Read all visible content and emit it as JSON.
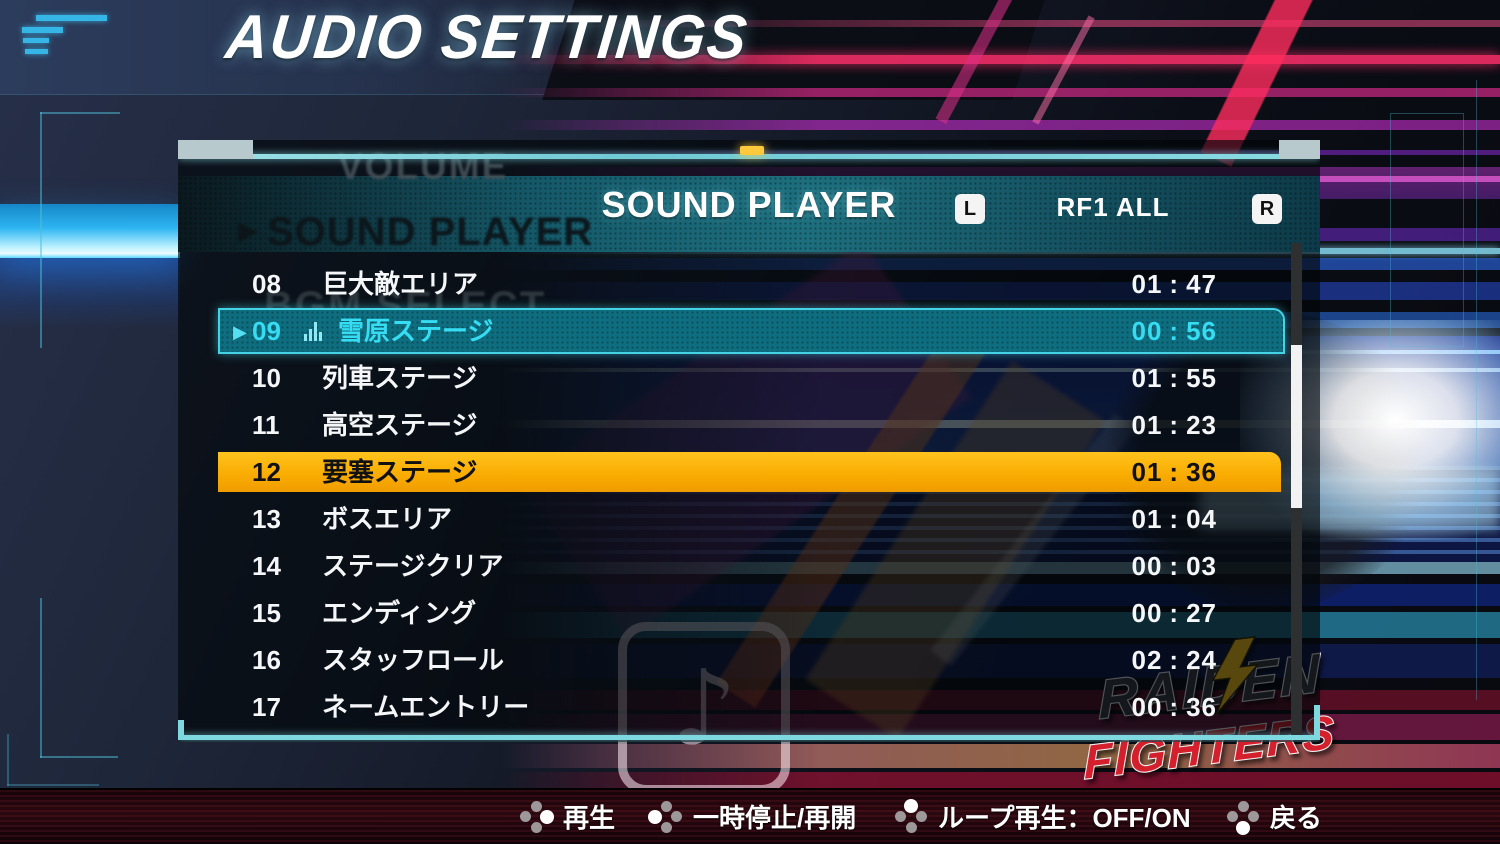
{
  "title": "AUDIO SETTINGS",
  "icons": {
    "playing_arrow": "▶",
    "ghost_arrow": "▶",
    "note": "♪",
    "menu": "menu-lines"
  },
  "panel": {
    "header": {
      "title": "SOUND PLAYER",
      "left_button": "L",
      "right_button": "R",
      "filter": "RF1 ALL"
    },
    "ghost_menu": {
      "volume": "VOLUME",
      "sound_player": "SOUND PLAYER",
      "bgm_select": "BGM SELECT"
    },
    "tracks": [
      {
        "num": "08",
        "name": "巨大敵エリア",
        "time": "01:47",
        "state": "normal"
      },
      {
        "num": "09",
        "name": "雪原ステージ",
        "time": "00:56",
        "state": "playing"
      },
      {
        "num": "10",
        "name": "列車ステージ",
        "time": "01:55",
        "state": "normal"
      },
      {
        "num": "11",
        "name": "高空ステージ",
        "time": "01:23",
        "state": "normal"
      },
      {
        "num": "12",
        "name": "要塞ステージ",
        "time": "01:36",
        "state": "selected"
      },
      {
        "num": "13",
        "name": "ボスエリア",
        "time": "01:04",
        "state": "normal"
      },
      {
        "num": "14",
        "name": "ステージクリア",
        "time": "00:03",
        "state": "normal"
      },
      {
        "num": "15",
        "name": "エンディング",
        "time": "00:27",
        "state": "normal"
      },
      {
        "num": "16",
        "name": "スタッフロール",
        "time": "02:24",
        "state": "normal"
      },
      {
        "num": "17",
        "name": "ネームエントリー",
        "time": "00:36",
        "state": "normal"
      }
    ]
  },
  "hints": [
    {
      "button": "right",
      "label": "再生"
    },
    {
      "button": "left",
      "label": "一時停止/再開"
    },
    {
      "button": "top",
      "label": "ループ再生：OFF/ON"
    },
    {
      "button": "bottom",
      "label": "戻る"
    }
  ],
  "logo": {
    "line1": "RAIDEN",
    "line2": "FIGHTERS"
  },
  "colors": {
    "accent_cyan": "#45d2e4",
    "playing_bg": "#0e6e80",
    "playing_text": "#35dcf2",
    "selected_bg": "#f9ab00",
    "selected_text": "#111111",
    "row_text": "#f4f6f8",
    "notch_yellow": "#ffc93e",
    "panel_border": "#7ed8e0",
    "scroll_thumb": "#f2f2f2"
  }
}
